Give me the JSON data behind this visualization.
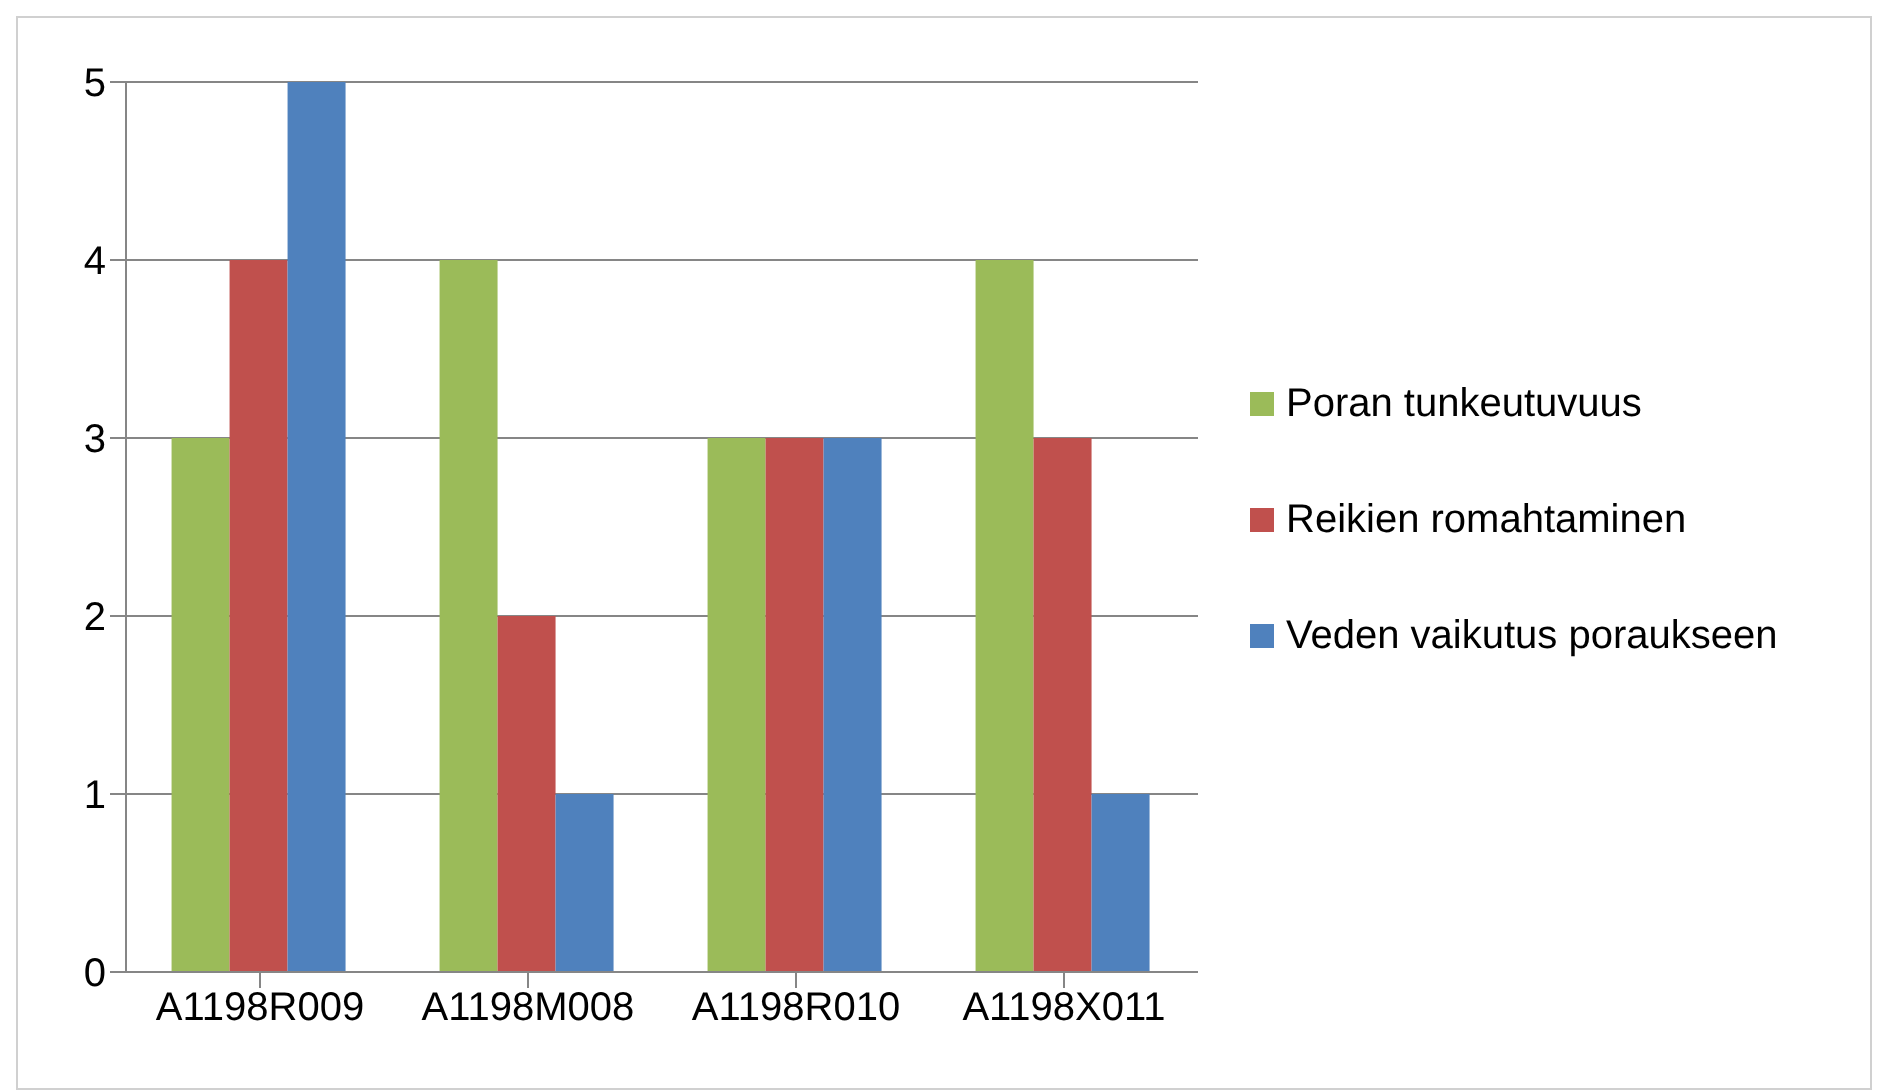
{
  "chart_data": {
    "type": "bar",
    "categories": [
      "A1198R009",
      "A1198M008",
      "A1198R010",
      "A1198X011"
    ],
    "series": [
      {
        "name": "Poran tunkeutuvuus",
        "color": "#9bbb59",
        "values": [
          3,
          4,
          3,
          4
        ]
      },
      {
        "name": "Reikien romahtaminen",
        "color": "#c0504d",
        "values": [
          4,
          2,
          3,
          3
        ]
      },
      {
        "name": "Veden vaikutus poraukseen",
        "color": "#4f81bd",
        "values": [
          5,
          1,
          3,
          1
        ]
      }
    ],
    "ylim": [
      0,
      5
    ],
    "yticks": [
      0,
      1,
      2,
      3,
      4,
      5
    ],
    "grid": "y",
    "legend": "right"
  }
}
